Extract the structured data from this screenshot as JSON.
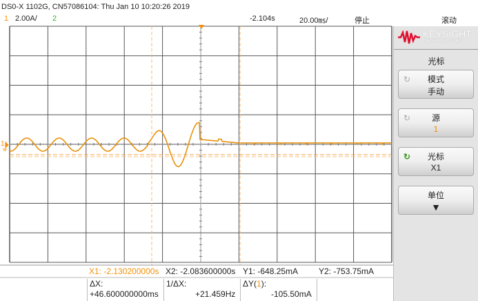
{
  "header": {
    "title": "DS0-X 1102G, CN57086104: Thu Jan 10 10:20:26 2019",
    "ch1_label": "1",
    "ch1_scale": "2.00A/",
    "ch2_label": "2",
    "time_offset": "-2.104s",
    "time_scale": "20.00㎳/",
    "run_state": "停止",
    "mode": "滚动"
  },
  "colors": {
    "ch1": "#f0900a",
    "ch2": "#3cb030",
    "grid": "#444444"
  },
  "softkeys": {
    "brand": "KEYSIGHT",
    "brand_sub": "TECHNOLOGIES",
    "menu_title": "光标",
    "items": [
      {
        "label": "模式",
        "value": "手动"
      },
      {
        "label": "源",
        "value": "1"
      },
      {
        "label": "光标",
        "value": "X1"
      },
      {
        "label": "单位",
        "value": "▼"
      }
    ]
  },
  "cursors": {
    "x1": "X1: -2.130200000s",
    "x2": "X2: -2.083600000s",
    "y1": "Y1: -648.25mA",
    "y2": "Y2: -753.75mA",
    "dx_label": "ΔX:",
    "dx": "+46.600000000ms",
    "inv_dx_label": "1/ΔX:",
    "inv_dx": "+21.459Hz",
    "dy_label_pre": "ΔY(",
    "dy_src": "1",
    "dy_label_post": "):",
    "dy": "-105.50mA"
  },
  "ground_marker": "1"
}
